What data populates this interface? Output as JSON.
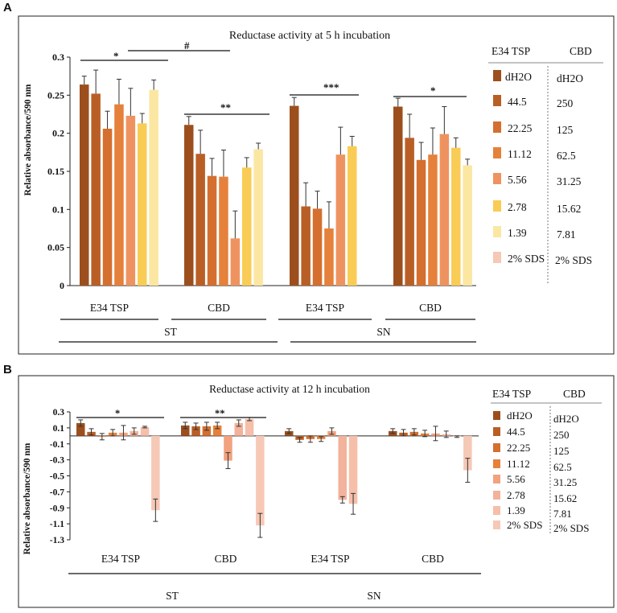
{
  "panels": [
    {
      "letter": "A",
      "title": "Reductase activity at 5 h incubation",
      "ylabel": "Relative absorbance/590 nm",
      "yticks": [
        "0",
        "0.05",
        "0.1",
        "0.15",
        "0.2",
        "0.25",
        "0.3"
      ],
      "legend_header": [
        "E34 TSP",
        "CBD"
      ],
      "legend_rows": [
        [
          "dH2O",
          "dH2O"
        ],
        [
          "44.5",
          "250"
        ],
        [
          "22.25",
          "125"
        ],
        [
          "11.12",
          "62.5"
        ],
        [
          "5.56",
          "31.25"
        ],
        [
          "2.78",
          "15.62"
        ],
        [
          "1.39",
          "7.81"
        ],
        [
          "2% SDS",
          "2% SDS"
        ]
      ],
      "group_labels": [
        "E34 TSP",
        "CBD",
        "E34 TSP",
        "CBD"
      ],
      "super_labels": [
        "ST",
        "SN"
      ],
      "sig_labels": [
        "*",
        "#",
        "**",
        "***",
        "*"
      ]
    },
    {
      "letter": "B",
      "title": "Reductase activity at 12 h incubation",
      "ylabel": "Relative absorbance/590 nm",
      "yticks": [
        "0.3",
        "0.1",
        "-0.1",
        "-0.3",
        "-0.5",
        "-0.7",
        "-0.9",
        "-1.1",
        "-1.3"
      ],
      "legend_header": [
        "E34 TSP",
        "CBD"
      ],
      "legend_rows": [
        [
          "dH2O",
          "dH2O"
        ],
        [
          "44.5",
          "250"
        ],
        [
          "22.25",
          "125"
        ],
        [
          "11.12",
          "62.5"
        ],
        [
          "5.56",
          "31.25"
        ],
        [
          "2.78",
          "15.62"
        ],
        [
          "1.39",
          "7.81"
        ],
        [
          "2% SDS",
          "2% SDS"
        ]
      ],
      "group_labels": [
        "E34 TSP",
        "CBD",
        "E34 TSP",
        "CBD"
      ],
      "super_labels": [
        "ST",
        "SN"
      ],
      "sig_labels": [
        "*",
        "**"
      ]
    }
  ],
  "colors": [
    "#9c4f1d",
    "#b95f26",
    "#d46f2f",
    "#e5813a",
    "#ee9360",
    "#f9cc55",
    "#fbe7a2",
    "#f6c8b6"
  ],
  "colors_b": [
    "#9c4f1d",
    "#b95f26",
    "#d46f2f",
    "#e5813a",
    "#f1a27e",
    "#f3b29b",
    "#f5bfa9",
    "#f6c8b6"
  ],
  "chart_data": [
    {
      "type": "bar",
      "title": "Reductase activity at 5 h incubation",
      "ylabel": "Relative absorbance/590 nm",
      "ylim": [
        0,
        0.3
      ],
      "categories": [
        "ST E34 TSP",
        "ST CBD",
        "SN E34 TSP",
        "SN CBD"
      ],
      "values": [
        [
          0.264,
          0.252,
          0.206,
          0.238,
          0.223,
          0.213,
          0.257
        ],
        [
          0.211,
          0.173,
          0.144,
          0.143,
          0.062,
          0.155,
          0.179
        ],
        [
          0.236,
          0.104,
          0.101,
          0.075,
          0.172,
          0.183
        ],
        [
          0.235,
          0.194,
          0.165,
          0.172,
          0.199,
          0.181,
          0.158
        ]
      ],
      "errors": [
        [
          0.011,
          0.031,
          0.023,
          0.033,
          0.036,
          0.013,
          0.013
        ],
        [
          0.011,
          0.031,
          0.023,
          0.035,
          0.036,
          0.013,
          0.008
        ],
        [
          0.011,
          0.031,
          0.023,
          0.035,
          0.036,
          0.013
        ],
        [
          0.011,
          0.031,
          0.023,
          0.035,
          0.036,
          0.013,
          0.008
        ]
      ],
      "series_index": [
        [
          0,
          1,
          2,
          3,
          4,
          5,
          6
        ],
        [
          0,
          1,
          2,
          3,
          4,
          5,
          6
        ],
        [
          0,
          1,
          2,
          3,
          4,
          5
        ],
        [
          0,
          1,
          2,
          3,
          4,
          5,
          6
        ]
      ]
    },
    {
      "type": "bar",
      "title": "Reductase activity at 12 h incubation",
      "ylabel": "Relative absorbance/590 nm",
      "ylim": [
        -1.3,
        0.3
      ],
      "categories": [
        "ST E34 TSP",
        "ST CBD",
        "SN E34 TSP",
        "SN CBD"
      ],
      "values": [
        [
          0.16,
          0.05,
          -0.01,
          0.04,
          0.04,
          0.06,
          0.11,
          -0.93
        ],
        [
          0.13,
          0.12,
          0.12,
          0.13,
          -0.31,
          0.16,
          0.21,
          -1.12
        ],
        [
          0.06,
          -0.05,
          -0.04,
          -0.04,
          0.06,
          -0.8,
          -0.85
        ],
        [
          0.06,
          0.04,
          0.05,
          0.03,
          0.03,
          0.02,
          -0.01,
          -0.43
        ]
      ],
      "errors": [
        [
          0.04,
          0.04,
          0.04,
          0.04,
          0.09,
          0.04,
          0.01,
          0.14
        ],
        [
          0.04,
          0.04,
          0.05,
          0.04,
          0.1,
          0.04,
          0.02,
          0.15
        ],
        [
          0.03,
          0.03,
          0.04,
          0.03,
          0.04,
          0.04,
          0.13
        ],
        [
          0.03,
          0.04,
          0.04,
          0.04,
          0.09,
          0.04,
          0.01,
          0.15
        ]
      ],
      "series_index": [
        [
          0,
          1,
          2,
          3,
          4,
          5,
          6,
          7
        ],
        [
          0,
          1,
          2,
          3,
          4,
          5,
          6,
          7
        ],
        [
          0,
          1,
          2,
          3,
          4,
          5,
          6
        ],
        [
          0,
          1,
          2,
          3,
          4,
          5,
          6,
          7
        ]
      ]
    }
  ]
}
